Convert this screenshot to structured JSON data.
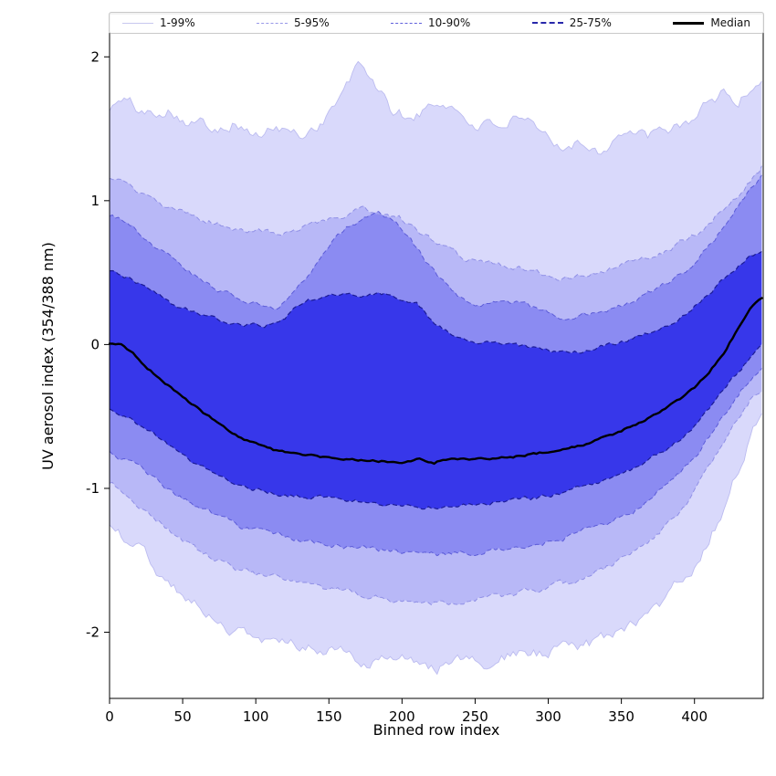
{
  "chart_data": {
    "type": "area",
    "title": "",
    "xlabel": "Binned row index",
    "ylabel": "UV aerosol index (354/388 nm)",
    "xlim": [
      0,
      447
    ],
    "ylim": [
      -2.46,
      2.3
    ],
    "xticks": [
      0,
      50,
      100,
      150,
      200,
      250,
      300,
      350,
      400
    ],
    "yticks": [
      -2,
      -1,
      0,
      1,
      2
    ],
    "grid": false,
    "legend_position": "top-inside-horizontal",
    "legend": {
      "entries": [
        {
          "label": "1-99%",
          "color": "#c8c8ef",
          "dash": "solid",
          "width": 1
        },
        {
          "label": "5-95%",
          "color": "#9898e8",
          "dash": "dashed",
          "width": 1
        },
        {
          "label": "10-90%",
          "color": "#6060dc",
          "dash": "dashed",
          "width": 1
        },
        {
          "label": "25-75%",
          "color": "#2828aa",
          "dash": "dashed",
          "width": 2
        },
        {
          "label": "Median",
          "color": "#000000",
          "dash": "solid",
          "width": 3
        }
      ]
    },
    "bands": [
      {
        "name": "1-99%",
        "fill": "rgba(32,32,232,0.17)",
        "edge_color": "#bcbcf0",
        "edge_dash": "",
        "edge_width": 0.9,
        "noise": 0.045,
        "upper": [
          [
            0,
            1.65
          ],
          [
            10,
            1.7
          ],
          [
            25,
            1.6
          ],
          [
            40,
            1.65
          ],
          [
            55,
            1.55
          ],
          [
            70,
            1.52
          ],
          [
            85,
            1.55
          ],
          [
            100,
            1.45
          ],
          [
            115,
            1.5
          ],
          [
            130,
            1.45
          ],
          [
            145,
            1.55
          ],
          [
            160,
            1.75
          ],
          [
            170,
            1.93
          ],
          [
            180,
            1.85
          ],
          [
            192,
            1.63
          ],
          [
            205,
            1.57
          ],
          [
            220,
            1.65
          ],
          [
            232,
            1.68
          ],
          [
            245,
            1.55
          ],
          [
            260,
            1.52
          ],
          [
            275,
            1.55
          ],
          [
            290,
            1.5
          ],
          [
            305,
            1.38
          ],
          [
            320,
            1.42
          ],
          [
            335,
            1.35
          ],
          [
            350,
            1.48
          ],
          [
            365,
            1.44
          ],
          [
            380,
            1.46
          ],
          [
            395,
            1.55
          ],
          [
            410,
            1.68
          ],
          [
            420,
            1.75
          ],
          [
            430,
            1.68
          ],
          [
            440,
            1.8
          ],
          [
            447,
            1.85
          ]
        ],
        "lower": [
          [
            0,
            -1.25
          ],
          [
            20,
            -1.42
          ],
          [
            40,
            -1.65
          ],
          [
            60,
            -1.82
          ],
          [
            80,
            -1.95
          ],
          [
            100,
            -2.05
          ],
          [
            120,
            -2.06
          ],
          [
            140,
            -2.1
          ],
          [
            160,
            -2.15
          ],
          [
            180,
            -2.2
          ],
          [
            200,
            -2.2
          ],
          [
            220,
            -2.25
          ],
          [
            240,
            -2.22
          ],
          [
            260,
            -2.2
          ],
          [
            280,
            -2.16
          ],
          [
            300,
            -2.15
          ],
          [
            320,
            -2.1
          ],
          [
            340,
            -2.04
          ],
          [
            360,
            -1.95
          ],
          [
            380,
            -1.78
          ],
          [
            400,
            -1.52
          ],
          [
            415,
            -1.25
          ],
          [
            430,
            -0.85
          ],
          [
            440,
            -0.58
          ],
          [
            447,
            -0.45
          ]
        ]
      },
      {
        "name": "5-95%",
        "fill": "rgba(32,32,232,0.18)",
        "edge_color": "#9090e6",
        "edge_dash": "5,3",
        "edge_width": 1,
        "noise": 0.022,
        "upper": [
          [
            0,
            1.15
          ],
          [
            12,
            1.1
          ],
          [
            25,
            1.02
          ],
          [
            40,
            0.95
          ],
          [
            55,
            0.9
          ],
          [
            70,
            0.85
          ],
          [
            85,
            0.81
          ],
          [
            100,
            0.78
          ],
          [
            115,
            0.76
          ],
          [
            130,
            0.81
          ],
          [
            145,
            0.86
          ],
          [
            160,
            0.9
          ],
          [
            172,
            0.94
          ],
          [
            185,
            0.93
          ],
          [
            198,
            0.88
          ],
          [
            210,
            0.8
          ],
          [
            222,
            0.71
          ],
          [
            235,
            0.63
          ],
          [
            248,
            0.58
          ],
          [
            262,
            0.56
          ],
          [
            275,
            0.55
          ],
          [
            290,
            0.51
          ],
          [
            305,
            0.47
          ],
          [
            320,
            0.48
          ],
          [
            335,
            0.51
          ],
          [
            350,
            0.55
          ],
          [
            365,
            0.6
          ],
          [
            378,
            0.64
          ],
          [
            390,
            0.7
          ],
          [
            402,
            0.78
          ],
          [
            415,
            0.9
          ],
          [
            428,
            1.03
          ],
          [
            438,
            1.14
          ],
          [
            447,
            1.25
          ]
        ],
        "lower": [
          [
            0,
            -0.95
          ],
          [
            15,
            -1.07
          ],
          [
            30,
            -1.2
          ],
          [
            45,
            -1.32
          ],
          [
            60,
            -1.43
          ],
          [
            75,
            -1.51
          ],
          [
            90,
            -1.57
          ],
          [
            105,
            -1.61
          ],
          [
            120,
            -1.64
          ],
          [
            140,
            -1.69
          ],
          [
            160,
            -1.72
          ],
          [
            180,
            -1.75
          ],
          [
            200,
            -1.78
          ],
          [
            220,
            -1.79
          ],
          [
            240,
            -1.78
          ],
          [
            260,
            -1.76
          ],
          [
            280,
            -1.73
          ],
          [
            300,
            -1.7
          ],
          [
            320,
            -1.64
          ],
          [
            340,
            -1.55
          ],
          [
            360,
            -1.43
          ],
          [
            380,
            -1.27
          ],
          [
            395,
            -1.1
          ],
          [
            410,
            -0.87
          ],
          [
            425,
            -0.6
          ],
          [
            437,
            -0.4
          ],
          [
            447,
            -0.3
          ]
        ]
      },
      {
        "name": "10-90%",
        "fill": "rgba(32,32,232,0.29)",
        "edge_color": "#5c5cd8",
        "edge_dash": "5,3",
        "edge_width": 1,
        "noise": 0.018,
        "upper": [
          [
            0,
            0.9
          ],
          [
            15,
            0.84
          ],
          [
            30,
            0.7
          ],
          [
            45,
            0.58
          ],
          [
            60,
            0.47
          ],
          [
            75,
            0.38
          ],
          [
            90,
            0.32
          ],
          [
            105,
            0.27
          ],
          [
            115,
            0.26
          ],
          [
            125,
            0.35
          ],
          [
            135,
            0.48
          ],
          [
            145,
            0.62
          ],
          [
            155,
            0.74
          ],
          [
            165,
            0.83
          ],
          [
            175,
            0.88
          ],
          [
            185,
            0.9
          ],
          [
            195,
            0.84
          ],
          [
            205,
            0.73
          ],
          [
            215,
            0.6
          ],
          [
            225,
            0.47
          ],
          [
            235,
            0.36
          ],
          [
            245,
            0.3
          ],
          [
            258,
            0.28
          ],
          [
            270,
            0.3
          ],
          [
            282,
            0.28
          ],
          [
            295,
            0.24
          ],
          [
            308,
            0.2
          ],
          [
            320,
            0.2
          ],
          [
            332,
            0.22
          ],
          [
            345,
            0.26
          ],
          [
            358,
            0.3
          ],
          [
            370,
            0.36
          ],
          [
            382,
            0.43
          ],
          [
            395,
            0.52
          ],
          [
            408,
            0.66
          ],
          [
            420,
            0.82
          ],
          [
            432,
            1.0
          ],
          [
            440,
            1.1
          ],
          [
            447,
            1.18
          ]
        ],
        "lower": [
          [
            0,
            -0.75
          ],
          [
            15,
            -0.83
          ],
          [
            30,
            -0.93
          ],
          [
            45,
            -1.04
          ],
          [
            60,
            -1.13
          ],
          [
            75,
            -1.21
          ],
          [
            90,
            -1.27
          ],
          [
            105,
            -1.31
          ],
          [
            120,
            -1.34
          ],
          [
            140,
            -1.37
          ],
          [
            160,
            -1.4
          ],
          [
            180,
            -1.42
          ],
          [
            200,
            -1.45
          ],
          [
            220,
            -1.46
          ],
          [
            240,
            -1.45
          ],
          [
            260,
            -1.43
          ],
          [
            280,
            -1.4
          ],
          [
            300,
            -1.37
          ],
          [
            320,
            -1.31
          ],
          [
            340,
            -1.24
          ],
          [
            360,
            -1.14
          ],
          [
            380,
            -0.99
          ],
          [
            395,
            -0.85
          ],
          [
            410,
            -0.65
          ],
          [
            425,
            -0.42
          ],
          [
            437,
            -0.25
          ],
          [
            447,
            -0.15
          ]
        ]
      },
      {
        "name": "25-75%",
        "fill": "rgba(32,32,232,0.78)",
        "edge_color": "#1c1c96",
        "edge_dash": "5,3",
        "edge_width": 1.2,
        "noise": 0.015,
        "upper": [
          [
            0,
            0.5
          ],
          [
            15,
            0.46
          ],
          [
            30,
            0.36
          ],
          [
            45,
            0.27
          ],
          [
            60,
            0.21
          ],
          [
            75,
            0.17
          ],
          [
            90,
            0.14
          ],
          [
            105,
            0.13
          ],
          [
            120,
            0.2
          ],
          [
            135,
            0.3
          ],
          [
            150,
            0.34
          ],
          [
            165,
            0.35
          ],
          [
            180,
            0.35
          ],
          [
            195,
            0.34
          ],
          [
            210,
            0.28
          ],
          [
            222,
            0.16
          ],
          [
            235,
            0.06
          ],
          [
            248,
            0.03
          ],
          [
            262,
            0.01
          ],
          [
            275,
            0.0
          ],
          [
            290,
            -0.03
          ],
          [
            305,
            -0.05
          ],
          [
            320,
            -0.05
          ],
          [
            335,
            -0.02
          ],
          [
            350,
            0.02
          ],
          [
            365,
            0.07
          ],
          [
            380,
            0.13
          ],
          [
            395,
            0.22
          ],
          [
            410,
            0.35
          ],
          [
            425,
            0.5
          ],
          [
            437,
            0.6
          ],
          [
            447,
            0.65
          ]
        ],
        "lower": [
          [
            0,
            -0.45
          ],
          [
            15,
            -0.52
          ],
          [
            30,
            -0.62
          ],
          [
            45,
            -0.73
          ],
          [
            60,
            -0.84
          ],
          [
            75,
            -0.92
          ],
          [
            90,
            -0.98
          ],
          [
            105,
            -1.02
          ],
          [
            120,
            -1.05
          ],
          [
            140,
            -1.06
          ],
          [
            160,
            -1.08
          ],
          [
            180,
            -1.1
          ],
          [
            200,
            -1.13
          ],
          [
            220,
            -1.13
          ],
          [
            240,
            -1.11
          ],
          [
            260,
            -1.1
          ],
          [
            280,
            -1.08
          ],
          [
            300,
            -1.05
          ],
          [
            320,
            -1.0
          ],
          [
            340,
            -0.94
          ],
          [
            360,
            -0.86
          ],
          [
            380,
            -0.74
          ],
          [
            395,
            -0.62
          ],
          [
            410,
            -0.46
          ],
          [
            425,
            -0.25
          ],
          [
            437,
            -0.1
          ],
          [
            447,
            0.0
          ]
        ]
      }
    ],
    "median": {
      "label": "Median",
      "color": "#000000",
      "width": 2.4,
      "noise": 0.008,
      "points": [
        [
          0,
          0.0
        ],
        [
          8,
          0.0
        ],
        [
          15,
          -0.05
        ],
        [
          25,
          -0.15
        ],
        [
          35,
          -0.24
        ],
        [
          45,
          -0.32
        ],
        [
          55,
          -0.4
        ],
        [
          65,
          -0.48
        ],
        [
          75,
          -0.55
        ],
        [
          85,
          -0.62
        ],
        [
          95,
          -0.67
        ],
        [
          105,
          -0.71
        ],
        [
          115,
          -0.74
        ],
        [
          130,
          -0.76
        ],
        [
          145,
          -0.78
        ],
        [
          160,
          -0.79
        ],
        [
          175,
          -0.8
        ],
        [
          190,
          -0.81
        ],
        [
          200,
          -0.82
        ],
        [
          212,
          -0.8
        ],
        [
          222,
          -0.82
        ],
        [
          235,
          -0.78
        ],
        [
          248,
          -0.8
        ],
        [
          260,
          -0.79
        ],
        [
          275,
          -0.78
        ],
        [
          290,
          -0.76
        ],
        [
          305,
          -0.74
        ],
        [
          320,
          -0.71
        ],
        [
          335,
          -0.66
        ],
        [
          350,
          -0.6
        ],
        [
          365,
          -0.53
        ],
        [
          378,
          -0.46
        ],
        [
          390,
          -0.38
        ],
        [
          400,
          -0.3
        ],
        [
          410,
          -0.19
        ],
        [
          420,
          -0.06
        ],
        [
          430,
          0.12
        ],
        [
          438,
          0.24
        ],
        [
          447,
          0.33
        ]
      ]
    }
  }
}
